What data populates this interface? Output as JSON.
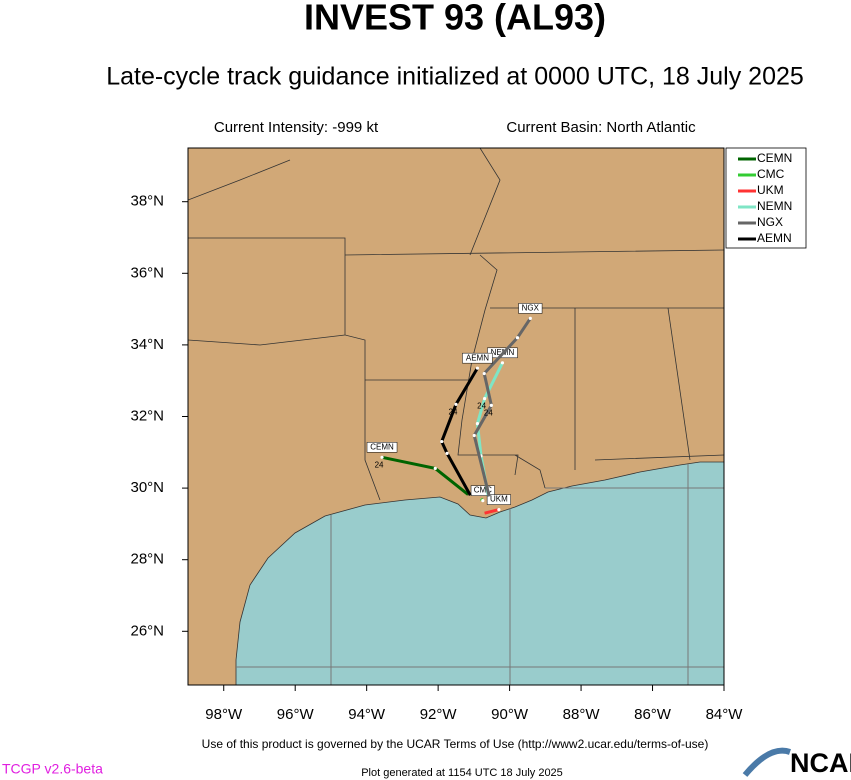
{
  "chart_data": {
    "type": "track",
    "title": "INVEST 93 (AL93)",
    "subtitle": "Late-cycle track guidance initialized at 0000 UTC, 18 July 2025",
    "current_intensity": "Current Intensity: -999 kt",
    "current_basin": "Current Basin: North Atlantic",
    "xlim": [
      -99,
      -84
    ],
    "ylim": [
      24.5,
      39.5
    ],
    "xticks": [
      {
        "value": -98,
        "label": "98°W"
      },
      {
        "value": -96,
        "label": "96°W"
      },
      {
        "value": -94,
        "label": "94°W"
      },
      {
        "value": -92,
        "label": "92°W"
      },
      {
        "value": -90,
        "label": "90°W"
      },
      {
        "value": -88,
        "label": "88°W"
      },
      {
        "value": -86,
        "label": "86°W"
      },
      {
        "value": -84,
        "label": "84°W"
      }
    ],
    "yticks": [
      {
        "value": 26,
        "label": "26°N"
      },
      {
        "value": 28,
        "label": "28°N"
      },
      {
        "value": 30,
        "label": "30°N"
      },
      {
        "value": 32,
        "label": "32°N"
      },
      {
        "value": 34,
        "label": "34°N"
      },
      {
        "value": 36,
        "label": "36°N"
      },
      {
        "value": 38,
        "label": "38°N"
      }
    ],
    "series": [
      {
        "name": "CEMN",
        "color": "#006400",
        "lon": [
          -91.16,
          -92.08,
          -93.57
        ],
        "lat": [
          29.82,
          30.55,
          30.86
        ],
        "point_labels": [
          null,
          null,
          "24"
        ]
      },
      {
        "name": "CMC",
        "color": "#33cc33",
        "lon": [
          -90.8,
          -90.75
        ],
        "lat": [
          29.7,
          29.65
        ],
        "point_labels": [
          null,
          null
        ]
      },
      {
        "name": "UKM",
        "color": "#ff3333",
        "lon": [
          -90.7,
          -90.3
        ],
        "lat": [
          29.3,
          29.4
        ],
        "point_labels": [
          null,
          null
        ]
      },
      {
        "name": "NEMN",
        "color": "#7fe5c5",
        "lon": [
          -90.6,
          -90.8,
          -90.9,
          -90.7,
          -90.2
        ],
        "lat": [
          29.8,
          30.9,
          31.8,
          32.5,
          33.5
        ],
        "point_labels": [
          null,
          null,
          null,
          "24",
          null
        ]
      },
      {
        "name": "NGX",
        "color": "#666666",
        "lon": [
          -90.57,
          -90.99,
          -90.51,
          -90.71,
          -89.78,
          -89.42
        ],
        "lat": [
          29.77,
          31.47,
          32.31,
          33.2,
          34.2,
          34.74
        ],
        "point_labels": [
          null,
          null,
          "24",
          null,
          null,
          null
        ]
      },
      {
        "name": "AEMN",
        "color": "#000000",
        "lon": [
          -91.1,
          -91.75,
          -91.9,
          -91.5,
          -90.9
        ],
        "lat": [
          29.8,
          30.97,
          31.3,
          32.34,
          33.35
        ],
        "point_labels": [
          null,
          null,
          null,
          "24",
          null
        ]
      }
    ],
    "footer_terms": "Use of this product is governed by the UCAR Terms of Use (http://www2.ucar.edu/terms-of-use)",
    "footer_version": "TCGP v2.6-beta",
    "footer_generated": "Plot generated at 1154 UTC   18 July 2025",
    "logo": "NCAR"
  }
}
